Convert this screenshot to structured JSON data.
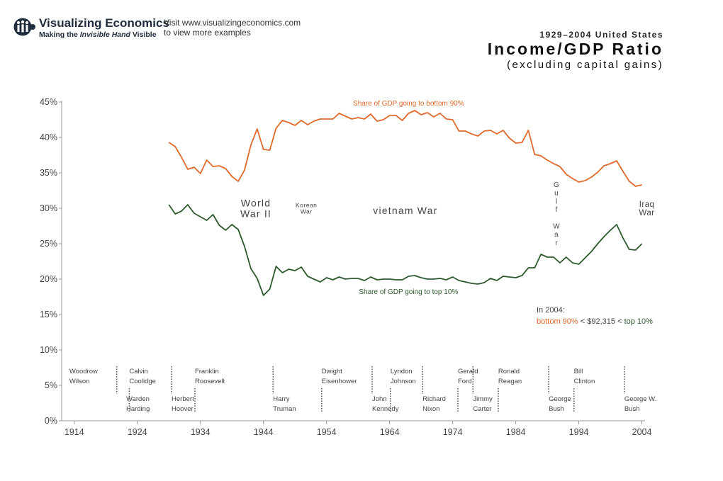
{
  "header": {
    "brand_title": "Visualizing Economics",
    "brand_sub_pre": "Making the ",
    "brand_sub_em": "Invisible Hand",
    "brand_sub_post": " Visible",
    "visit_line1": "Visit www.visualizingeconomics.com",
    "visit_line2": "to view more examples",
    "logo_icon": "people-group-icon"
  },
  "title": {
    "line1": "1929–2004 United States",
    "line2": "Income/GDP Ratio",
    "line3": "(excluding capital gains)"
  },
  "note": {
    "line1": "In 2004:",
    "bottom": "bottom 90%",
    "lt1": " < ",
    "amount": "$92,315",
    "lt2": " < ",
    "top": "top 10%"
  },
  "colors": {
    "bottom90": "#e06a2c",
    "top10": "#2d5a2d",
    "axis": "#888888",
    "text": "#444444"
  },
  "chart_data": {
    "type": "line",
    "title": "Income/GDP Ratio",
    "xlim": [
      1912,
      2004
    ],
    "ylim": [
      0,
      45
    ],
    "y_ticks": [
      0,
      5,
      10,
      15,
      20,
      25,
      30,
      35,
      40,
      45
    ],
    "y_tick_labels": [
      "0%",
      "5%",
      "10%",
      "15%",
      "20%",
      "25%",
      "30%",
      "35%",
      "40%",
      "45%"
    ],
    "x_ticks": [
      1914,
      1924,
      1934,
      1944,
      1954,
      1964,
      1974,
      1984,
      1994,
      2004
    ],
    "x_tick_labels": [
      "1914",
      "1924",
      "1934",
      "1944",
      "1954",
      "1964",
      "1974",
      "1984",
      "1994",
      "2004"
    ],
    "series": [
      {
        "name": "Share of GDP going to bottom 90%",
        "color": "#e06a2c",
        "x": [
          1929,
          1930,
          1931,
          1932,
          1933,
          1934,
          1935,
          1936,
          1937,
          1938,
          1939,
          1940,
          1941,
          1942,
          1943,
          1944,
          1945,
          1946,
          1947,
          1948,
          1949,
          1950,
          1951,
          1952,
          1953,
          1954,
          1955,
          1956,
          1957,
          1958,
          1959,
          1960,
          1961,
          1962,
          1963,
          1964,
          1965,
          1966,
          1967,
          1968,
          1969,
          1970,
          1971,
          1972,
          1973,
          1974,
          1975,
          1976,
          1977,
          1978,
          1979,
          1980,
          1981,
          1982,
          1983,
          1984,
          1985,
          1986,
          1987,
          1988,
          1989,
          1990,
          1991,
          1992,
          1993,
          1994,
          1995,
          1996,
          1997,
          1998,
          1999,
          2000,
          2001,
          2002,
          2003,
          2004
        ],
        "values": [
          39.3,
          38.7,
          37.2,
          35.5,
          35.8,
          34.9,
          36.8,
          35.9,
          36.0,
          35.6,
          34.5,
          33.8,
          35.4,
          38.9,
          41.2,
          38.3,
          38.2,
          41.3,
          42.4,
          42.1,
          41.7,
          42.4,
          41.8,
          42.3,
          42.6,
          42.6,
          42.6,
          43.4,
          43.0,
          42.6,
          42.8,
          42.6,
          43.3,
          42.3,
          42.5,
          43.1,
          43.1,
          42.4,
          43.4,
          43.8,
          43.2,
          43.5,
          42.9,
          43.4,
          42.6,
          42.5,
          40.9,
          40.9,
          40.5,
          40.2,
          40.9,
          41.0,
          40.5,
          41.0,
          39.9,
          39.2,
          39.3,
          41.0,
          37.6,
          37.4,
          36.8,
          36.3,
          35.9,
          34.8,
          34.2,
          33.7,
          33.9,
          34.4,
          35.1,
          36.0,
          36.3,
          36.7,
          35.2,
          33.8,
          33.1,
          33.3
        ]
      },
      {
        "name": "Share of GDP going to top 10%",
        "color": "#2d5a2d",
        "x": [
          1929,
          1930,
          1931,
          1932,
          1933,
          1934,
          1935,
          1936,
          1937,
          1938,
          1939,
          1940,
          1941,
          1942,
          1943,
          1944,
          1945,
          1946,
          1947,
          1948,
          1949,
          1950,
          1951,
          1952,
          1953,
          1954,
          1955,
          1956,
          1957,
          1958,
          1959,
          1960,
          1961,
          1962,
          1963,
          1964,
          1965,
          1966,
          1967,
          1968,
          1969,
          1970,
          1971,
          1972,
          1973,
          1974,
          1975,
          1976,
          1977,
          1978,
          1979,
          1980,
          1981,
          1982,
          1983,
          1984,
          1985,
          1986,
          1987,
          1988,
          1989,
          1990,
          1991,
          1992,
          1993,
          1994,
          1995,
          1996,
          1997,
          1998,
          1999,
          2000,
          2001,
          2002,
          2003,
          2004
        ],
        "values": [
          30.5,
          29.2,
          29.6,
          30.5,
          29.3,
          28.8,
          28.3,
          29.1,
          27.6,
          26.9,
          27.7,
          27.0,
          24.6,
          21.5,
          20.1,
          17.7,
          18.6,
          21.8,
          20.9,
          21.4,
          21.2,
          21.7,
          20.4,
          20.0,
          19.6,
          20.2,
          19.9,
          20.3,
          20.0,
          20.1,
          20.1,
          19.8,
          20.3,
          19.9,
          20.0,
          20.0,
          19.9,
          19.9,
          20.4,
          20.5,
          20.2,
          20.0,
          20.0,
          20.1,
          19.9,
          20.3,
          19.8,
          19.6,
          19.4,
          19.3,
          19.5,
          20.1,
          19.8,
          20.4,
          20.3,
          20.2,
          20.5,
          21.6,
          21.6,
          23.5,
          23.1,
          23.1,
          22.3,
          23.1,
          22.3,
          22.1,
          23.0,
          23.9,
          25.0,
          26.0,
          26.9,
          27.7,
          25.8,
          24.2,
          24.1,
          25.0
        ]
      }
    ],
    "series_label_positions": [
      {
        "year": 1967,
        "value": 44.5
      },
      {
        "year": 1967,
        "value": 17.9
      }
    ],
    "events": [
      {
        "lines": [
          "World",
          "War II"
        ],
        "year": 1942.8,
        "value": 30.0,
        "size": 14
      },
      {
        "lines": [
          "Korean",
          "War"
        ],
        "year": 1950.8,
        "value": 30.0,
        "size": 8.5
      },
      {
        "lines": [
          "vietnam War"
        ],
        "year": 1966.5,
        "value": 29.7,
        "size": 14
      },
      {
        "lines": [
          "G",
          "u",
          "l",
          "f",
          " ",
          "W",
          "a",
          "r"
        ],
        "year": 1990.5,
        "value": 33.5,
        "size": 10,
        "vertical": true
      },
      {
        "lines": [
          "Iraq",
          "War"
        ],
        "year": 2004,
        "value": 30.0,
        "size": 11.5
      }
    ],
    "presidents": [
      {
        "name": [
          "Woodrow",
          "Wilson"
        ],
        "year": 1913,
        "row": "upper",
        "marker_year": 1920.5
      },
      {
        "name": [
          "Warden",
          "Harding"
        ],
        "year": 1922,
        "row": "lower",
        "marker_year": 1922.5
      },
      {
        "name": [
          "Calvin",
          "Coolidge"
        ],
        "year": 1922.5,
        "row": "upper",
        "marker_year": 1929.2
      },
      {
        "name": [
          "Herbert",
          "Hoover"
        ],
        "year": 1929.2,
        "row": "lower",
        "marker_year": 1932.9
      },
      {
        "name": [
          "Franklin",
          "Roosevelt"
        ],
        "year": 1932.9,
        "row": "upper",
        "marker_year": 1945.3
      },
      {
        "name": [
          "Harry",
          "Truman"
        ],
        "year": 1945.3,
        "row": "lower",
        "marker_year": 1953
      },
      {
        "name": [
          "Dwight",
          "Eisenhower"
        ],
        "year": 1953,
        "row": "upper",
        "marker_year": 1961
      },
      {
        "name": [
          "John",
          "Kennedy"
        ],
        "year": 1961,
        "row": "lower",
        "marker_year": 1963.9
      },
      {
        "name": [
          "Lyndon",
          "Johnson"
        ],
        "year": 1963.9,
        "row": "upper",
        "marker_year": 1969
      },
      {
        "name": [
          "Richard",
          "Nixon"
        ],
        "year": 1969,
        "row": "lower",
        "marker_year": 1974.6
      },
      {
        "name": [
          "Gerald",
          "Ford"
        ],
        "year": 1974.6,
        "row": "upper",
        "marker_year": 1977
      },
      {
        "name": [
          "Jimmy",
          "Carter"
        ],
        "year": 1977,
        "row": "lower",
        "marker_year": 1981
      },
      {
        "name": [
          "Ronald",
          "Reagan"
        ],
        "year": 1981,
        "row": "upper",
        "marker_year": 1989
      },
      {
        "name": [
          "George",
          "Bush"
        ],
        "year": 1989,
        "row": "lower",
        "marker_year": 1993
      },
      {
        "name": [
          "Bill",
          "Clinton"
        ],
        "year": 1993,
        "row": "upper",
        "marker_year": 2001
      },
      {
        "name": [
          "George W.",
          "Bush"
        ],
        "year": 2001,
        "row": "lower",
        "marker_year": null
      }
    ]
  }
}
